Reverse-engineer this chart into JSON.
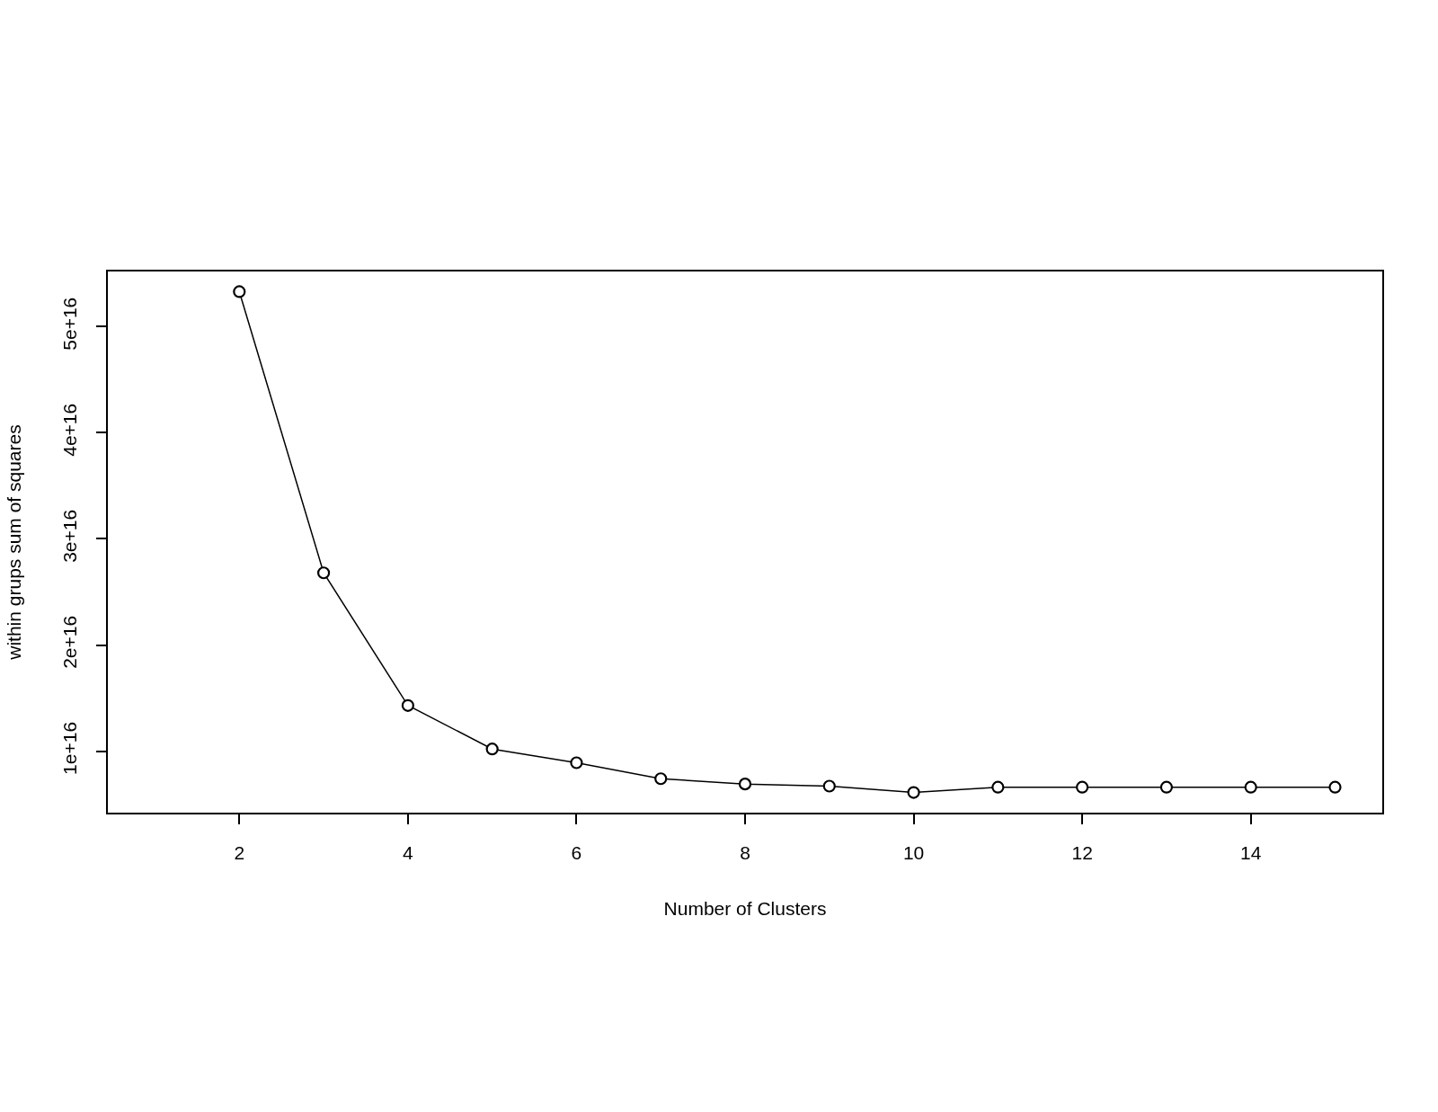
{
  "chart_data": {
    "type": "line",
    "xlabel": "Number of Clusters",
    "ylabel": "within grups sum of squares",
    "x": [
      2,
      3,
      4,
      5,
      6,
      7,
      8,
      9,
      10,
      11,
      12,
      13,
      14,
      15
    ],
    "series": [
      {
        "color": "#000000",
        "values": [
          5.33e+16,
          2.68e+16,
          1.43e+16,
          1.02e+16,
          8900000000000000.0,
          7400000000000000.0,
          6900000000000000.0,
          6700000000000000.0,
          6100000000000000.0,
          6600000000000000.0,
          6600000000000000.0,
          6600000000000000.0,
          6600000000000000.0,
          6600000000000000.0
        ]
      }
    ],
    "xlim": [
      0.44,
      15.56
    ],
    "xticks": [
      2,
      4,
      6,
      8,
      10,
      12,
      14
    ],
    "ylim": [
      4200000000000000.0,
      5.52e+16
    ],
    "yticks": [
      {
        "value": 1e+16,
        "label": "1e+16"
      },
      {
        "value": 2e+16,
        "label": "2e+16"
      },
      {
        "value": 3e+16,
        "label": "3e+16"
      },
      {
        "value": 4e+16,
        "label": "4e+16"
      },
      {
        "value": 5e+16,
        "label": "5e+16"
      }
    ],
    "marker": "circle",
    "line_style": "solid",
    "grid": false
  }
}
